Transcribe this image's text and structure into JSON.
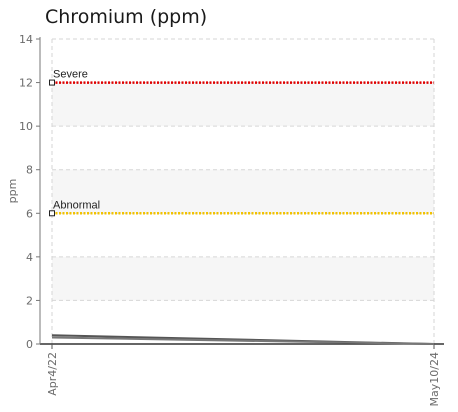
{
  "chart_data": {
    "type": "line",
    "title": "Chromium (ppm)",
    "ylabel": "ppm",
    "xlabel": "",
    "ylim": [
      0,
      14
    ],
    "yticks": [
      0,
      2,
      4,
      6,
      8,
      10,
      12,
      14
    ],
    "x_categories": [
      "Apr4/22",
      "May10/24"
    ],
    "grid": true,
    "shaded_bands": [
      [
        2,
        4
      ],
      [
        6,
        8
      ],
      [
        10,
        12
      ]
    ],
    "thresholds": [
      {
        "label": "Severe",
        "value": 12,
        "color": "#e00000"
      },
      {
        "label": "Abnormal",
        "value": 6,
        "color": "#f2c200"
      }
    ],
    "series": [
      {
        "color": "#555555",
        "values": [
          0.4,
          0
        ]
      },
      {
        "color": "#777777",
        "values": [
          0.3,
          0
        ]
      }
    ]
  }
}
